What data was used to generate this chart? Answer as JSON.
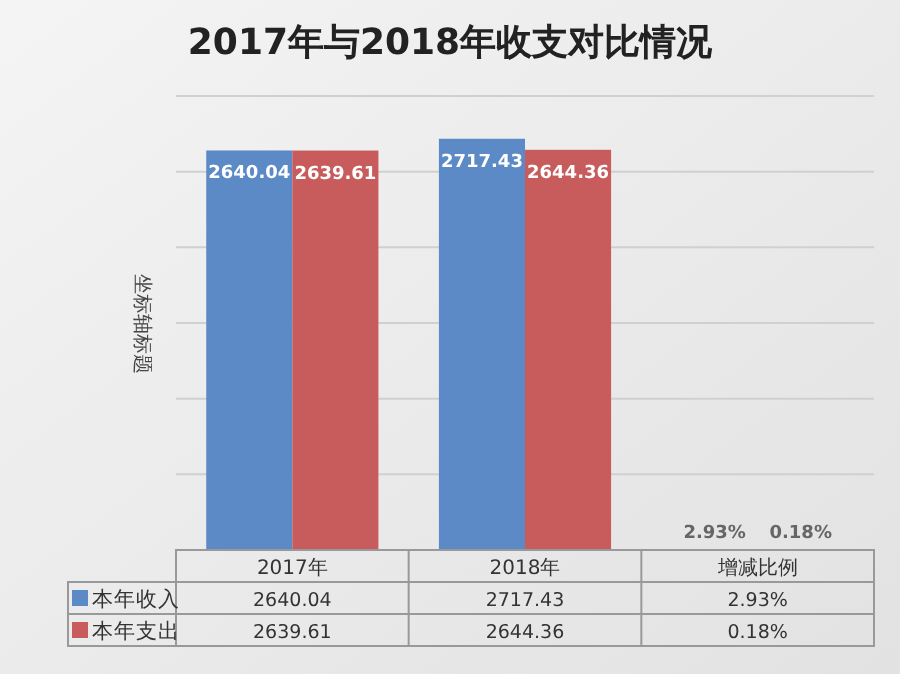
{
  "chart_data": {
    "type": "bar",
    "title": "2017年与2018年收支对比情况",
    "ylabel": "坐标轴标题",
    "categories": [
      "2017年",
      "2018年",
      "增减比例"
    ],
    "series": [
      {
        "name": "本年收入",
        "color": "#5b8ac6",
        "values": [
          2640.04,
          2717.43,
          2.93
        ],
        "value_labels": [
          "2640.04",
          "2717.43",
          "2.93%"
        ]
      },
      {
        "name": "本年支出",
        "color": "#c85c5c",
        "values": [
          2639.61,
          2644.36,
          0.18
        ],
        "value_labels": [
          "2639.61",
          "2644.36",
          "0.18%"
        ]
      }
    ],
    "ylim": [
      0,
      3000
    ],
    "grid": "y",
    "legend": "bottom",
    "tick_labels": "x"
  }
}
